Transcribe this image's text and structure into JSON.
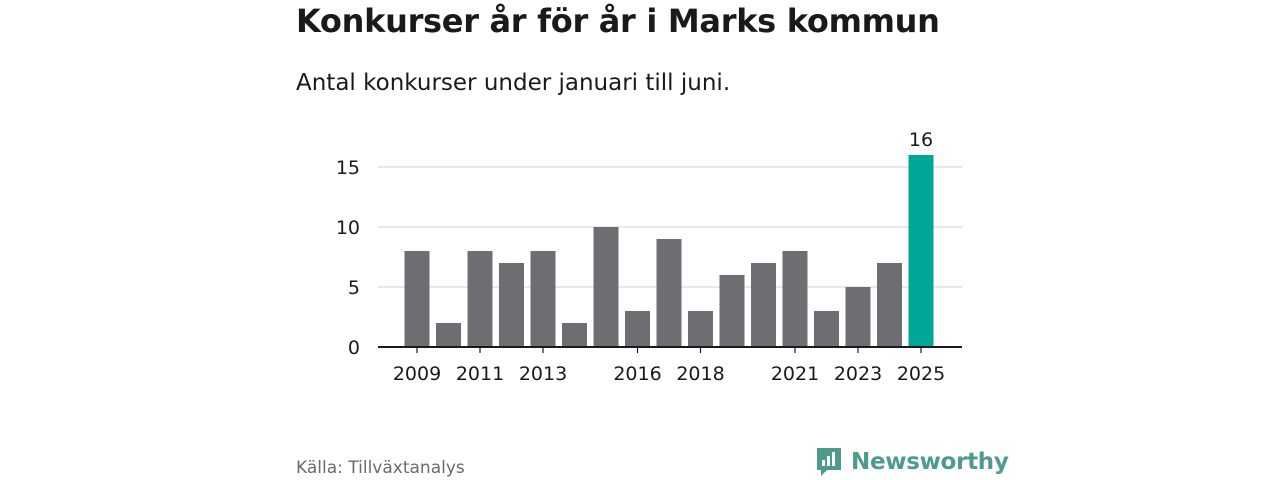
{
  "header": {
    "title": "Konkurser år för år i Marks kommun",
    "subtitle": "Antal konkurser under januari till juni."
  },
  "footer": {
    "source": "Källa: Tillväxtanalys",
    "brand": "Newsworthy"
  },
  "colors": {
    "bar": "#6e6d72",
    "highlight": "#00a699",
    "grid": "#d9d9d9",
    "axis": "#1a1a1a",
    "brand": "#4d9a8e"
  },
  "chart_data": {
    "type": "bar",
    "categories": [
      "2009",
      "2010",
      "2011",
      "2012",
      "2013",
      "2014",
      "2015",
      "2016",
      "2017",
      "2018",
      "2019",
      "2020",
      "2021",
      "2022",
      "2023",
      "2024",
      "2025"
    ],
    "values": [
      8,
      2,
      8,
      7,
      8,
      2,
      10,
      3,
      9,
      3,
      6,
      7,
      8,
      3,
      5,
      7,
      16
    ],
    "visible_tick_labels": [
      "2009",
      "2011",
      "2013",
      "2016",
      "2018",
      "2021",
      "2023",
      "2025"
    ],
    "y_ticks": [
      0,
      5,
      10,
      15
    ],
    "ylim": [
      0,
      16
    ],
    "highlight_category": "2025",
    "data_labels": [
      {
        "category": "2025",
        "value": 16,
        "label": "16"
      }
    ],
    "grid": true,
    "legend": "none"
  }
}
